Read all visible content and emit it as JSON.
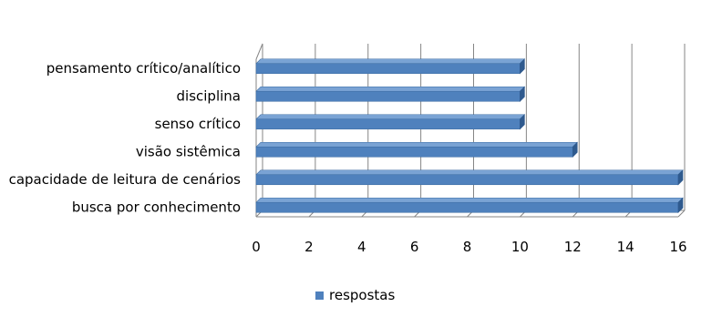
{
  "chart_data": {
    "type": "bar",
    "orientation": "horizontal",
    "style": "3d",
    "categories": [
      "pensamento crítico/analítico",
      "disciplina",
      "senso crítico",
      "visão sistêmica",
      "capacidade de leitura de cenários",
      "busca por conhecimento"
    ],
    "series": [
      {
        "name": "respostas",
        "values": [
          10,
          10,
          10,
          12,
          16,
          16
        ],
        "color": "#4f81bd"
      }
    ],
    "xticks": [
      "0",
      "2",
      "4",
      "6",
      "8",
      "10",
      "12",
      "14",
      "16"
    ],
    "xlim": [
      0,
      16
    ],
    "grid": "vertical",
    "legend": "bottom",
    "title": "",
    "xlabel": "",
    "ylabel": ""
  }
}
